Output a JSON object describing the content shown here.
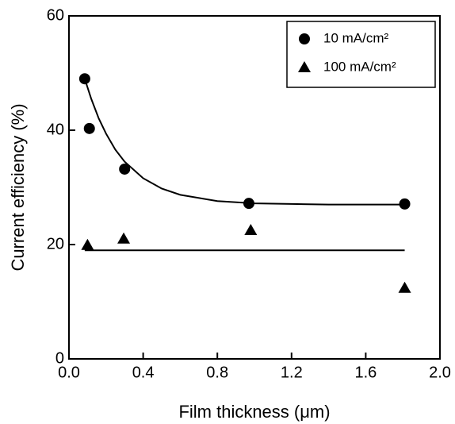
{
  "chart_data": {
    "type": "scatter",
    "xlabel": "Film thickness (μm)",
    "ylabel": "Current efficiency (%)",
    "xlim": [
      0,
      2
    ],
    "ylim": [
      0,
      60
    ],
    "xticks": [
      {
        "value": 0,
        "label": "0.0"
      },
      {
        "value": 0.4,
        "label": "0.4"
      },
      {
        "value": 0.8,
        "label": "0.8"
      },
      {
        "value": 1.2,
        "label": "1.2"
      },
      {
        "value": 1.6,
        "label": "1.6"
      },
      {
        "value": 2,
        "label": "2.0"
      }
    ],
    "yticks": [
      0,
      20,
      40,
      60
    ],
    "legend": "upper right",
    "series": [
      {
        "name": "10 mA/cm²",
        "marker": "circle",
        "color": "#000000",
        "x": [
          0.085,
          0.11,
          0.3,
          0.97,
          1.81
        ],
        "values": [
          49.0,
          40.3,
          33.2,
          27.2,
          27.1
        ]
      },
      {
        "name": "100 mA/cm²",
        "marker": "triangle",
        "color": "#000000",
        "x": [
          0.1,
          0.295,
          0.98,
          1.81
        ],
        "values": [
          19.9,
          21.0,
          22.5,
          12.4
        ]
      }
    ],
    "fit_lines": [
      {
        "x": [
          0.085,
          0.12,
          0.16,
          0.2,
          0.25,
          0.3,
          0.4,
          0.5,
          0.6,
          0.8,
          1.0,
          1.2,
          1.4,
          1.6,
          1.81
        ],
        "values": [
          49.0,
          45.5,
          42.1,
          39.4,
          36.6,
          34.5,
          31.6,
          29.8,
          28.7,
          27.6,
          27.2,
          27.1,
          27.0,
          27.0,
          27.0
        ]
      },
      {
        "x": [
          0.085,
          1.81
        ],
        "values": [
          19.0,
          19.0
        ]
      }
    ]
  }
}
